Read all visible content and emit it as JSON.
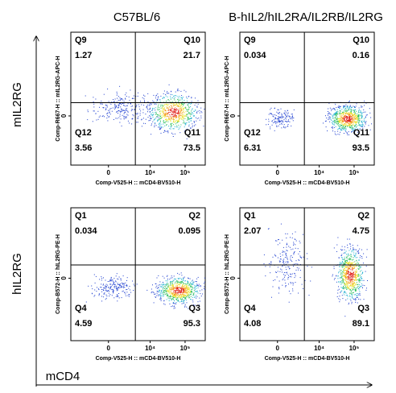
{
  "column_titles": [
    "C57BL/6",
    "B-hIL2/hIL2RA/IL2RB/IL2RG"
  ],
  "row_titles": [
    "mIL2RG",
    "hIL2RG"
  ],
  "x_title": "mCD4",
  "panels": [
    {
      "x_label": "Comp-V525-H :: mCD4-BV510-H",
      "y_label": "Comp-R667-H :: mIL2RG-APC-H",
      "xticks": [
        {
          "value": 0,
          "label": "0"
        },
        {
          "value": 10000,
          "label": "10⁴"
        },
        {
          "value": 100000,
          "label": "10⁵"
        }
      ],
      "yticks": [
        {
          "value": 0,
          "label": "0"
        }
      ],
      "quadrants": [
        {
          "name": "Q9",
          "value": 1.27
        },
        {
          "name": "Q10",
          "value": 21.7
        },
        {
          "name": "Q12",
          "value": 3.56
        },
        {
          "name": "Q11",
          "value": 73.5
        }
      ]
    },
    {
      "x_label": "Comp-V525-H :: mCD4-BV510-H",
      "y_label": "Comp-R667-H :: mIL2RG-APC-H",
      "xticks": [
        {
          "value": 0,
          "label": "0"
        },
        {
          "value": 10000,
          "label": "10⁴"
        },
        {
          "value": 100000,
          "label": "10⁵"
        }
      ],
      "yticks": [
        {
          "value": 0,
          "label": "0"
        }
      ],
      "quadrants": [
        {
          "name": "Q9",
          "value": 0.034
        },
        {
          "name": "Q10",
          "value": 0.16
        },
        {
          "name": "Q12",
          "value": 6.31
        },
        {
          "name": "Q11",
          "value": 93.5
        }
      ]
    },
    {
      "x_label": "Comp-V525-H :: mCD4-BV510-H",
      "y_label": "Comp-B572-H :: hIL2RG-PE-H",
      "xticks": [
        {
          "value": 0,
          "label": "0"
        },
        {
          "value": 10000,
          "label": "10⁴"
        },
        {
          "value": 100000,
          "label": "10⁵"
        }
      ],
      "yticks": [
        {
          "value": 0,
          "label": "0"
        }
      ],
      "quadrants": [
        {
          "name": "Q1",
          "value": 0.034
        },
        {
          "name": "Q2",
          "value": 0.095
        },
        {
          "name": "Q4",
          "value": 4.59
        },
        {
          "name": "Q3",
          "value": 95.3
        }
      ]
    },
    {
      "x_label": "Comp-V525-H :: mCD4-BV510-H",
      "y_label": "Comp-B572-H :: hIL2RG-PE-H",
      "xticks": [
        {
          "value": 0,
          "label": "0"
        },
        {
          "value": 10000,
          "label": "10⁴"
        },
        {
          "value": 100000,
          "label": "10⁵"
        }
      ],
      "yticks": [
        {
          "value": 0,
          "label": "0"
        }
      ],
      "quadrants": [
        {
          "name": "Q1",
          "value": 2.07
        },
        {
          "name": "Q2",
          "value": 4.75
        },
        {
          "name": "Q4",
          "value": 4.08
        },
        {
          "name": "Q3",
          "value": 89.1
        }
      ]
    }
  ]
}
